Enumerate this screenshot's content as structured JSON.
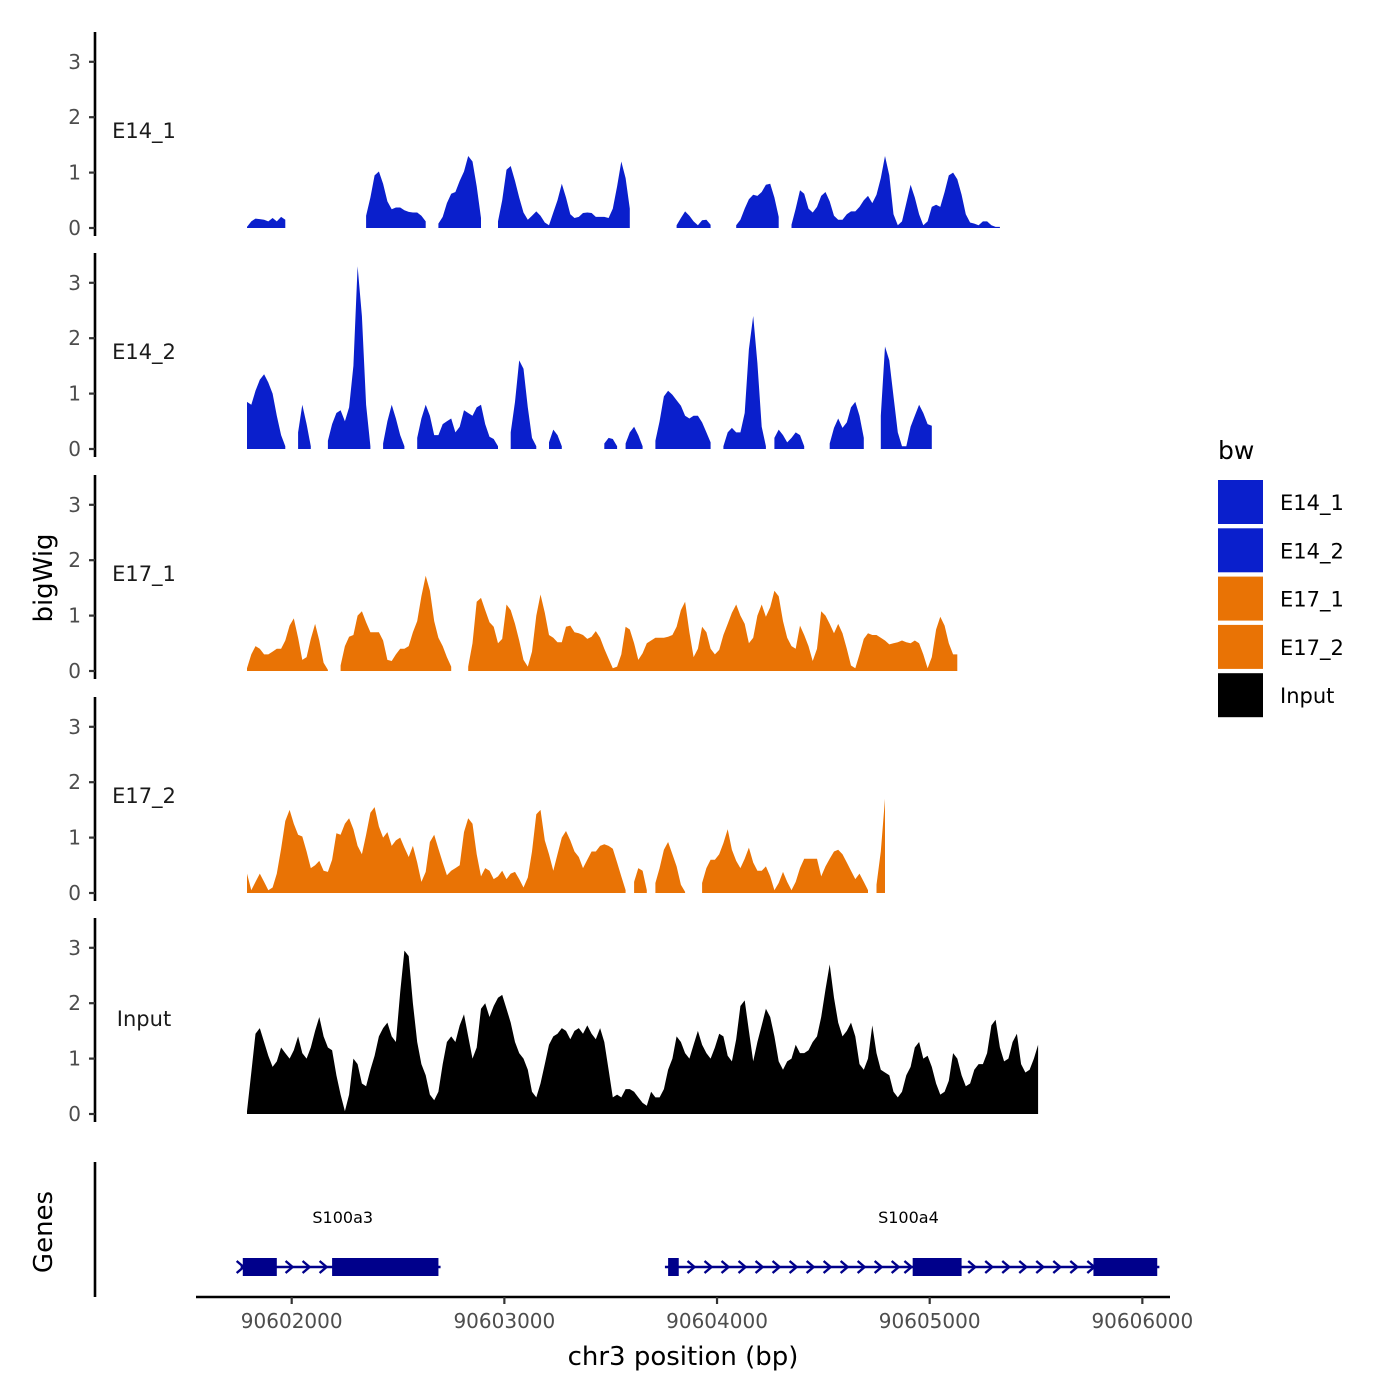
{
  "chart_data": {
    "type": "area",
    "title": "",
    "xlabel": "chr3 position (bp)",
    "ylabel": "bigWig",
    "genes_label": "Genes",
    "xlim": [
      90601550,
      90606130
    ],
    "ylim": [
      0,
      3.5
    ],
    "x_ticks": [
      90602000,
      90603000,
      90604000,
      90605000,
      90606000
    ],
    "x_tick_labels": [
      "90602000",
      "90603000",
      "90604000",
      "90605000",
      "90606000"
    ],
    "y_ticks": [
      0,
      1,
      2,
      3
    ],
    "y_tick_labels": [
      "0",
      "1",
      "2",
      "3"
    ],
    "legend": {
      "title": "bw",
      "entries": [
        {
          "label": "E14_1",
          "color": "#0a1fcc"
        },
        {
          "label": "E14_2",
          "color": "#0a1fcc"
        },
        {
          "label": "E17_1",
          "color": "#e97305"
        },
        {
          "label": "E17_2",
          "color": "#e97305"
        },
        {
          "label": "Input",
          "color": "#000000"
        }
      ]
    },
    "x_start": 90601790,
    "x_step": 20,
    "series": [
      {
        "name": "E14_1",
        "color": "#0a1fcc",
        "values": [
          0.02,
          0.12,
          0.17,
          0.16,
          0.15,
          0.12,
          0.18,
          0.12,
          0.2,
          0.15,
          null,
          null,
          null,
          null,
          null,
          null,
          null,
          null,
          null,
          null,
          null,
          null,
          null,
          null,
          null,
          null,
          null,
          null,
          0.22,
          0.55,
          0.95,
          1.02,
          0.8,
          0.48,
          0.34,
          0.37,
          0.37,
          0.32,
          0.29,
          0.28,
          0.28,
          0.22,
          0.12,
          null,
          null,
          0.08,
          0.2,
          0.45,
          0.62,
          0.65,
          0.85,
          1.02,
          1.3,
          1.2,
          0.75,
          0.18,
          null,
          null,
          null,
          0.12,
          0.5,
          1.05,
          1.12,
          0.85,
          0.55,
          0.28,
          0.15,
          0.22,
          0.3,
          0.22,
          0.1,
          0.05,
          0.28,
          0.5,
          0.8,
          0.55,
          0.25,
          0.18,
          0.2,
          0.27,
          0.28,
          0.27,
          0.2,
          0.2,
          0.2,
          0.18,
          0.35,
          0.75,
          1.2,
          0.9,
          0.35,
          null,
          null,
          null,
          null,
          null,
          null,
          null,
          null,
          null,
          null,
          0.05,
          0.18,
          0.3,
          0.22,
          0.12,
          0.05,
          0.14,
          0.15,
          0.06,
          null,
          null,
          null,
          null,
          null,
          0.05,
          0.15,
          0.35,
          0.52,
          0.6,
          0.58,
          0.65,
          0.78,
          0.8,
          0.55,
          0.2,
          null,
          null,
          0.06,
          0.35,
          0.68,
          0.62,
          0.35,
          0.28,
          0.38,
          0.58,
          0.65,
          0.48,
          0.22,
          0.15,
          0.15,
          0.25,
          0.3,
          0.3,
          0.38,
          0.5,
          0.58,
          0.45,
          0.6,
          0.9,
          1.3,
          0.95,
          0.25,
          0.05,
          0.12,
          0.45,
          0.78,
          0.55,
          0.25,
          0.05,
          0.12,
          0.38,
          0.42,
          0.38,
          0.65,
          0.95,
          1.0,
          0.88,
          0.6,
          0.25,
          0.1,
          0.08,
          0.05,
          0.12,
          0.12,
          0.05,
          0.02,
          0.02
        ]
      },
      {
        "name": "E14_2",
        "color": "#0a1fcc",
        "values": [
          0.85,
          0.8,
          1.05,
          1.25,
          1.35,
          1.2,
          1.0,
          0.6,
          0.25,
          0.05,
          null,
          null,
          0.3,
          0.8,
          0.45,
          0.05,
          null,
          null,
          null,
          0.15,
          0.45,
          0.65,
          0.7,
          0.5,
          0.75,
          1.5,
          3.3,
          2.4,
          0.8,
          0.05,
          null,
          null,
          0.1,
          0.5,
          0.8,
          0.55,
          0.25,
          0.05,
          null,
          null,
          0.2,
          0.55,
          0.8,
          0.6,
          0.25,
          0.25,
          0.45,
          0.5,
          0.55,
          0.3,
          0.4,
          0.7,
          0.65,
          0.6,
          0.75,
          0.8,
          0.45,
          0.22,
          0.18,
          0.05,
          null,
          null,
          0.3,
          0.85,
          1.6,
          1.45,
          0.75,
          0.2,
          0.05,
          null,
          null,
          0.12,
          0.35,
          0.25,
          0.05,
          null,
          null,
          null,
          null,
          null,
          null,
          null,
          null,
          null,
          0.1,
          0.2,
          0.18,
          0.05,
          null,
          0.1,
          0.3,
          0.4,
          0.25,
          0.05,
          null,
          null,
          0.15,
          0.5,
          0.95,
          1.05,
          0.98,
          0.88,
          0.78,
          0.6,
          0.55,
          0.6,
          0.6,
          0.48,
          0.3,
          0.12,
          null,
          null,
          0.05,
          0.3,
          0.38,
          0.3,
          0.3,
          0.65,
          1.8,
          2.4,
          1.55,
          0.4,
          0.05,
          null,
          0.2,
          0.35,
          0.25,
          0.12,
          0.2,
          0.3,
          0.25,
          0.05,
          null,
          null,
          null,
          null,
          null,
          0.1,
          0.38,
          0.55,
          0.38,
          0.48,
          0.75,
          0.85,
          0.6,
          0.2,
          null,
          null,
          null,
          0.6,
          1.85,
          1.6,
          0.95,
          0.3,
          0.05,
          0.05,
          0.4,
          0.6,
          0.8,
          0.65,
          0.45,
          0.42
        ]
      },
      {
        "name": "E17_1",
        "color": "#e97305",
        "values": [
          0.05,
          0.3,
          0.45,
          0.4,
          0.3,
          0.3,
          0.35,
          0.4,
          0.4,
          0.55,
          0.82,
          0.95,
          0.6,
          0.2,
          0.25,
          0.58,
          0.85,
          0.55,
          0.15,
          0.02,
          null,
          null,
          0.1,
          0.45,
          0.62,
          0.65,
          1.0,
          1.08,
          0.88,
          0.7,
          0.7,
          0.7,
          0.55,
          0.2,
          0.18,
          0.3,
          0.4,
          0.4,
          0.45,
          0.7,
          0.9,
          1.35,
          1.72,
          1.45,
          0.9,
          0.6,
          0.45,
          0.25,
          0.08,
          null,
          null,
          null,
          0.08,
          0.5,
          1.25,
          1.32,
          1.1,
          0.88,
          0.8,
          0.5,
          0.58,
          1.2,
          1.1,
          0.85,
          0.55,
          0.2,
          0.08,
          0.35,
          1.0,
          1.38,
          1.05,
          0.65,
          0.6,
          0.52,
          0.52,
          0.8,
          0.82,
          0.7,
          0.68,
          0.65,
          0.58,
          0.62,
          0.72,
          0.6,
          0.4,
          0.22,
          0.05,
          0.08,
          0.3,
          0.8,
          0.75,
          0.5,
          0.2,
          0.32,
          0.5,
          0.55,
          0.6,
          0.6,
          0.6,
          0.62,
          0.65,
          0.8,
          1.1,
          1.25,
          0.7,
          0.25,
          0.4,
          0.8,
          0.7,
          0.4,
          0.3,
          0.38,
          0.65,
          0.85,
          1.05,
          1.2,
          1.0,
          0.85,
          0.5,
          0.6,
          1.0,
          1.2,
          0.98,
          1.15,
          1.45,
          1.35,
          0.9,
          0.6,
          0.45,
          0.4,
          0.82,
          0.65,
          0.45,
          0.18,
          0.4,
          1.08,
          1.0,
          0.85,
          0.68,
          0.85,
          0.68,
          0.4,
          0.1,
          0.05,
          0.3,
          0.58,
          0.68,
          0.65,
          0.65,
          0.6,
          0.55,
          0.48,
          0.5,
          0.52,
          0.55,
          0.52,
          0.5,
          0.55,
          0.5,
          0.3,
          0.05,
          0.25,
          0.75,
          0.98,
          0.82,
          0.5,
          0.3,
          0.3
        ]
      },
      {
        "name": "E17_2",
        "color": "#e97305",
        "values": [
          0.35,
          0.05,
          0.2,
          0.35,
          0.2,
          0.05,
          0.1,
          0.35,
          0.8,
          1.3,
          1.5,
          1.25,
          1.05,
          1.02,
          0.75,
          0.45,
          0.5,
          0.58,
          0.4,
          0.38,
          0.6,
          1.08,
          1.05,
          1.25,
          1.35,
          1.15,
          0.85,
          0.7,
          1.05,
          1.45,
          1.55,
          1.2,
          1.0,
          1.1,
          0.85,
          0.95,
          1.0,
          0.82,
          0.65,
          0.85,
          0.55,
          0.2,
          0.38,
          0.92,
          1.05,
          0.8,
          0.55,
          0.32,
          0.4,
          0.45,
          0.5,
          1.1,
          1.35,
          1.25,
          0.7,
          0.3,
          0.45,
          0.4,
          0.25,
          0.3,
          0.4,
          0.25,
          0.35,
          0.38,
          0.25,
          0.1,
          0.28,
          0.75,
          1.42,
          1.5,
          0.95,
          0.7,
          0.4,
          0.7,
          1.0,
          1.12,
          0.95,
          0.75,
          0.65,
          0.45,
          0.6,
          0.75,
          0.75,
          0.85,
          0.88,
          0.85,
          0.8,
          0.55,
          0.3,
          0.05,
          null,
          0.2,
          0.45,
          0.4,
          0.05,
          null,
          0.18,
          0.45,
          0.78,
          0.92,
          0.7,
          0.48,
          0.15,
          0.02,
          null,
          null,
          null,
          0.18,
          0.45,
          0.6,
          0.6,
          0.7,
          0.9,
          1.15,
          0.78,
          0.58,
          0.45,
          0.62,
          0.82,
          0.55,
          0.4,
          0.4,
          0.48,
          0.3,
          0.05,
          0.18,
          0.38,
          0.2,
          0.05,
          0.2,
          0.45,
          0.62,
          0.62,
          0.62,
          0.62,
          0.3,
          0.48,
          0.62,
          0.75,
          0.78,
          0.7,
          0.55,
          0.4,
          0.25,
          0.35,
          0.2,
          0.05,
          null,
          0.15,
          0.75,
          1.7
        ]
      },
      {
        "name": "Input",
        "color": "#000000",
        "values": [
          0.05,
          0.75,
          1.45,
          1.55,
          1.3,
          1.05,
          0.85,
          0.95,
          1.2,
          1.1,
          1.0,
          1.15,
          1.4,
          1.1,
          1.0,
          1.2,
          1.5,
          1.75,
          1.4,
          1.2,
          1.15,
          0.7,
          0.35,
          0.05,
          0.35,
          1.0,
          0.9,
          0.55,
          0.5,
          0.8,
          1.05,
          1.4,
          1.55,
          1.65,
          1.4,
          1.3,
          2.2,
          2.95,
          2.85,
          2.0,
          1.3,
          0.9,
          0.7,
          0.35,
          0.25,
          0.4,
          0.9,
          1.3,
          1.4,
          1.3,
          1.6,
          1.8,
          1.4,
          1.0,
          1.2,
          1.9,
          2.0,
          1.75,
          1.95,
          2.1,
          2.15,
          1.9,
          1.65,
          1.3,
          1.1,
          1.0,
          0.8,
          0.4,
          0.3,
          0.55,
          0.9,
          1.25,
          1.4,
          1.45,
          1.55,
          1.5,
          1.35,
          1.5,
          1.55,
          1.45,
          1.6,
          1.45,
          1.35,
          1.55,
          1.3,
          0.8,
          0.3,
          0.35,
          0.3,
          0.45,
          0.45,
          0.4,
          0.3,
          0.2,
          0.15,
          0.4,
          0.3,
          0.3,
          0.45,
          0.8,
          1.0,
          1.4,
          1.3,
          1.1,
          1.0,
          1.25,
          1.5,
          1.25,
          1.1,
          1.0,
          1.2,
          1.45,
          1.4,
          1.05,
          0.95,
          1.35,
          1.95,
          2.05,
          1.5,
          0.95,
          1.3,
          1.6,
          1.9,
          1.75,
          1.4,
          0.95,
          0.8,
          0.95,
          1.0,
          1.25,
          1.1,
          1.1,
          1.15,
          1.3,
          1.4,
          1.75,
          2.25,
          2.7,
          2.1,
          1.65,
          1.4,
          1.5,
          1.65,
          1.4,
          0.9,
          0.8,
          1.0,
          1.6,
          1.1,
          0.8,
          0.75,
          0.7,
          0.4,
          0.3,
          0.4,
          0.7,
          0.85,
          1.2,
          1.3,
          1.0,
          1.05,
          0.85,
          0.55,
          0.35,
          0.4,
          0.6,
          1.1,
          1.0,
          0.7,
          0.5,
          0.55,
          0.8,
          0.9,
          0.9,
          1.1,
          1.6,
          1.7,
          1.2,
          0.95,
          1.0,
          1.3,
          1.45,
          0.9,
          0.75,
          0.8,
          1.0,
          1.25
        ]
      }
    ],
    "genes": [
      {
        "name": "S100a3",
        "label_pos": 90602240,
        "start": 90601760,
        "end": 90602700,
        "strand": "+",
        "exons": [
          [
            90601770,
            90601930
          ],
          [
            90602190,
            90602690
          ]
        ],
        "arrows": [
          90601760,
          90601990,
          90602070,
          90602150,
          90602230
        ]
      },
      {
        "name": "S100a4",
        "label_pos": 90604900,
        "start": 90603755,
        "end": 90606080,
        "strand": "+",
        "exons": [
          [
            90603770,
            90603820
          ],
          [
            90604920,
            90605150
          ],
          [
            90605770,
            90606070
          ]
        ],
        "arrows": [
          90603800,
          90603880,
          90603960,
          90604040,
          90604120,
          90604200,
          90604280,
          90604360,
          90604440,
          90604520,
          90604600,
          90604680,
          90604760,
          90604840,
          90604900,
          90605010,
          90605200,
          90605280,
          90605360,
          90605440,
          90605520,
          90605600,
          90605680,
          90605760
        ]
      }
    ]
  }
}
